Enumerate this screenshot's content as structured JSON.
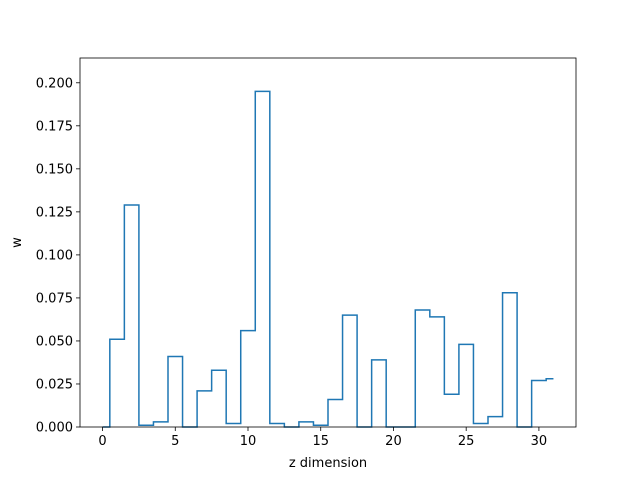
{
  "chart_data": {
    "type": "step",
    "title": "",
    "xlabel": "z dimension",
    "ylabel": "w",
    "xlim": [
      -1.55,
      32.55
    ],
    "ylim": [
      0,
      0.2144
    ],
    "xticks": [
      0,
      5,
      10,
      15,
      20,
      25,
      30
    ],
    "yticks": [
      0.0,
      0.025,
      0.05,
      0.075,
      0.1,
      0.125,
      0.15,
      0.175,
      0.2
    ],
    "ytick_labels": [
      "0.000",
      "0.025",
      "0.050",
      "0.075",
      "0.100",
      "0.125",
      "0.150",
      "0.175",
      "0.200"
    ],
    "xtick_labels": [
      "0",
      "5",
      "10",
      "15",
      "20",
      "25",
      "30"
    ],
    "series": [
      {
        "color": "#1f77b4",
        "step_where": "mid",
        "x": [
          0,
          1,
          2,
          3,
          4,
          5,
          6,
          7,
          8,
          9,
          10,
          11,
          12,
          13,
          14,
          15,
          16,
          17,
          18,
          19,
          20,
          21,
          22,
          23,
          24,
          25,
          26,
          27,
          28,
          29,
          30,
          31
        ],
        "values": [
          0.0,
          0.051,
          0.129,
          0.001,
          0.003,
          0.041,
          0.0,
          0.021,
          0.033,
          0.002,
          0.056,
          0.195,
          0.002,
          0.0,
          0.003,
          0.001,
          0.016,
          0.065,
          0.0,
          0.039,
          0.0,
          0.0,
          0.068,
          0.064,
          0.019,
          0.048,
          0.002,
          0.006,
          0.078,
          0.0,
          0.027,
          0.028
        ]
      }
    ],
    "grid": false,
    "legend": "none"
  }
}
